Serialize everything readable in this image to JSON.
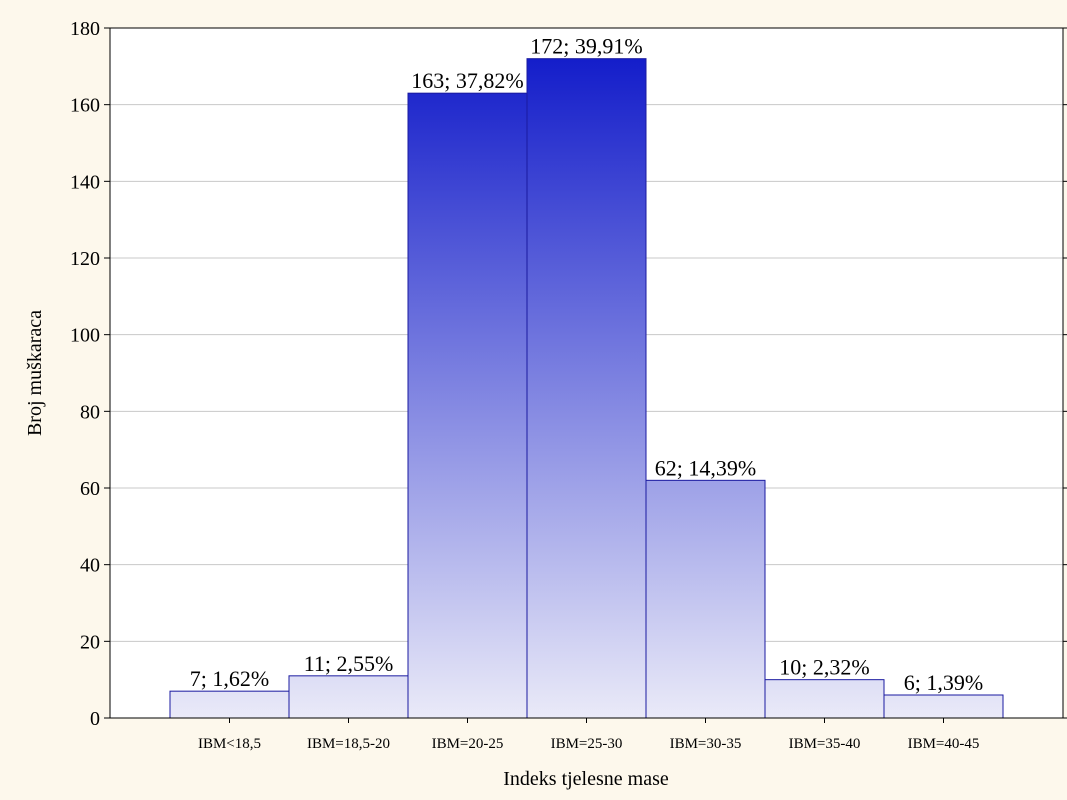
{
  "chart_data": {
    "type": "bar",
    "title": "",
    "xlabel": "Indeks tjelesne mase",
    "ylabel": "Broj muškaraca",
    "ylim": [
      0,
      180
    ],
    "yticks": [
      0,
      20,
      40,
      60,
      80,
      100,
      120,
      140,
      160,
      180
    ],
    "grid": true,
    "categories": [
      "IBM<18,5",
      "IBM=18,5-20",
      "IBM=20-25",
      "IBM=25-30",
      "IBM=30-35",
      "IBM=35-40",
      "IBM=40-45"
    ],
    "values": [
      7,
      11,
      163,
      172,
      62,
      10,
      6
    ],
    "data_labels": [
      "7; 1,62%",
      "11; 2,55%",
      "163; 37,82%",
      "172; 39,91%",
      "62; 14,39%",
      "10; 2,32%",
      "6; 1,39%"
    ],
    "colors": {
      "bar_top": "#0a14c8",
      "bar_bottom": "#eaeaf8",
      "bar_edge": "#1a1aa0",
      "grid": "#c8c8c8",
      "background": "#fdf8ec",
      "plot_background": "#ffffff"
    }
  }
}
